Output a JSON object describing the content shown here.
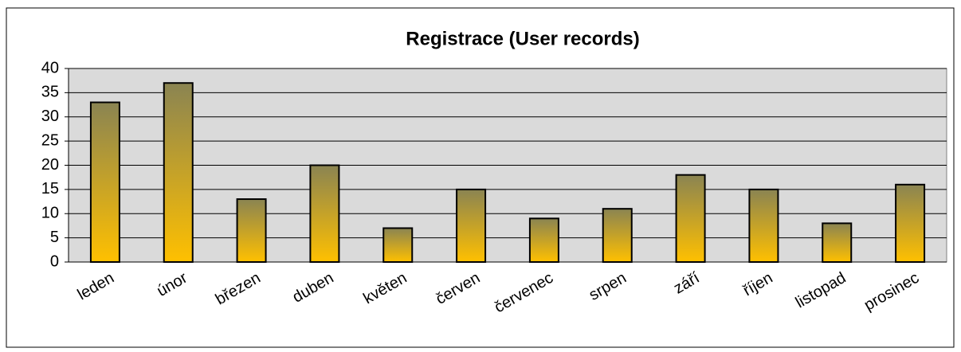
{
  "chart_data": {
    "type": "bar",
    "title": "Registrace (User records)",
    "categories": [
      "leden",
      "únor",
      "březen",
      "duben",
      "květen",
      "červen",
      "červenec",
      "srpen",
      "září",
      "říjen",
      "listopad",
      "prosinec"
    ],
    "values": [
      33,
      37,
      13,
      20,
      7,
      15,
      9,
      11,
      18,
      15,
      8,
      16
    ],
    "color": "#ffc000",
    "gradient_top": "#8a8452",
    "ylim": [
      0,
      40
    ],
    "yticks": [
      0,
      5,
      10,
      15,
      20,
      25,
      30,
      35,
      40
    ],
    "grid": true
  }
}
